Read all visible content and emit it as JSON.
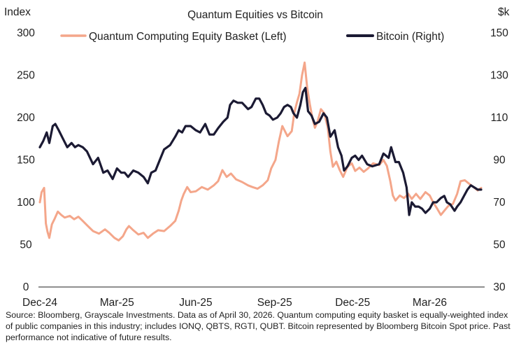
{
  "chart_data": {
    "type": "line",
    "title": "Quantum Equities vs Bitcoin",
    "left_axis_label": "Index",
    "right_axis_label": "$k",
    "y_left_ticks": [
      0,
      50,
      100,
      150,
      200,
      250,
      300
    ],
    "y_left_range": [
      0,
      300
    ],
    "y_right_ticks": [
      30,
      50,
      70,
      90,
      110,
      130,
      150
    ],
    "y_right_range": [
      30,
      150
    ],
    "x_ticks": [
      "Dec-24",
      "Mar-25",
      "Jun-25",
      "Sep-25",
      "Dec-25",
      "Mar-26"
    ],
    "x_tick_dates": [
      "2024-12-01",
      "2025-03-01",
      "2025-06-01",
      "2025-09-01",
      "2025-12-01",
      "2026-03-01"
    ],
    "x_range": [
      "2024-12-01",
      "2026-04-30"
    ],
    "grid": false,
    "legend_position": "top",
    "series": [
      {
        "name": "Quantum Computing Equity Basket (Left)",
        "axis": "left",
        "color": "#f4a68a",
        "points": [
          [
            "2024-12-01",
            100
          ],
          [
            "2024-12-03",
            112
          ],
          [
            "2024-12-06",
            117
          ],
          [
            "2024-12-08",
            75
          ],
          [
            "2024-12-10",
            65
          ],
          [
            "2024-12-12",
            58
          ],
          [
            "2024-12-15",
            74
          ],
          [
            "2024-12-18",
            80
          ],
          [
            "2024-12-22",
            89
          ],
          [
            "2024-12-26",
            85
          ],
          [
            "2024-12-30",
            82
          ],
          [
            "2025-01-05",
            84
          ],
          [
            "2025-01-10",
            80
          ],
          [
            "2025-01-15",
            83
          ],
          [
            "2025-01-20",
            78
          ],
          [
            "2025-01-25",
            73
          ],
          [
            "2025-02-01",
            66
          ],
          [
            "2025-02-08",
            63
          ],
          [
            "2025-02-15",
            68
          ],
          [
            "2025-02-20",
            64
          ],
          [
            "2025-02-26",
            58
          ],
          [
            "2025-03-03",
            55
          ],
          [
            "2025-03-08",
            60
          ],
          [
            "2025-03-12",
            68
          ],
          [
            "2025-03-15",
            72
          ],
          [
            "2025-03-20",
            67
          ],
          [
            "2025-03-26",
            62
          ],
          [
            "2025-04-01",
            64
          ],
          [
            "2025-04-06",
            58
          ],
          [
            "2025-04-12",
            63
          ],
          [
            "2025-04-18",
            67
          ],
          [
            "2025-04-25",
            66
          ],
          [
            "2025-05-02",
            72
          ],
          [
            "2025-05-08",
            78
          ],
          [
            "2025-05-12",
            90
          ],
          [
            "2025-05-15",
            102
          ],
          [
            "2025-05-18",
            110
          ],
          [
            "2025-05-22",
            118
          ],
          [
            "2025-05-26",
            112
          ],
          [
            "2025-06-01",
            113
          ],
          [
            "2025-06-08",
            118
          ],
          [
            "2025-06-15",
            115
          ],
          [
            "2025-06-22",
            120
          ],
          [
            "2025-06-27",
            125
          ],
          [
            "2025-07-02",
            138
          ],
          [
            "2025-07-07",
            130
          ],
          [
            "2025-07-12",
            134
          ],
          [
            "2025-07-18",
            127
          ],
          [
            "2025-07-25",
            124
          ],
          [
            "2025-08-01",
            120
          ],
          [
            "2025-08-06",
            118
          ],
          [
            "2025-08-12",
            116
          ],
          [
            "2025-08-18",
            120
          ],
          [
            "2025-08-24",
            126
          ],
          [
            "2025-08-28",
            140
          ],
          [
            "2025-09-02",
            150
          ],
          [
            "2025-09-06",
            172
          ],
          [
            "2025-09-10",
            190
          ],
          [
            "2025-09-16",
            178
          ],
          [
            "2025-09-21",
            184
          ],
          [
            "2025-09-24",
            206
          ],
          [
            "2025-09-27",
            218
          ],
          [
            "2025-09-30",
            228
          ],
          [
            "2025-10-03",
            250
          ],
          [
            "2025-10-06",
            265
          ],
          [
            "2025-10-09",
            235
          ],
          [
            "2025-10-12",
            216
          ],
          [
            "2025-10-15",
            200
          ],
          [
            "2025-10-18",
            188
          ],
          [
            "2025-10-21",
            195
          ],
          [
            "2025-10-25",
            210
          ],
          [
            "2025-10-29",
            205
          ],
          [
            "2025-11-02",
            188
          ],
          [
            "2025-11-05",
            160
          ],
          [
            "2025-11-08",
            142
          ],
          [
            "2025-11-12",
            148
          ],
          [
            "2025-11-16",
            138
          ],
          [
            "2025-11-20",
            130
          ],
          [
            "2025-11-25",
            142
          ],
          [
            "2025-11-30",
            146
          ],
          [
            "2025-12-04",
            137
          ],
          [
            "2025-12-09",
            141
          ],
          [
            "2025-12-14",
            136
          ],
          [
            "2025-12-19",
            140
          ],
          [
            "2025-12-25",
            146
          ],
          [
            "2026-01-01",
            144
          ],
          [
            "2026-01-06",
            150
          ],
          [
            "2026-01-10",
            143
          ],
          [
            "2026-01-14",
            125
          ],
          [
            "2026-01-17",
            108
          ],
          [
            "2026-01-20",
            102
          ],
          [
            "2026-01-25",
            108
          ],
          [
            "2026-01-30",
            105
          ],
          [
            "2026-02-04",
            110
          ],
          [
            "2026-02-08",
            104
          ],
          [
            "2026-02-13",
            110
          ],
          [
            "2026-02-18",
            104
          ],
          [
            "2026-02-24",
            112
          ],
          [
            "2026-03-01",
            108
          ],
          [
            "2026-03-05",
            100
          ],
          [
            "2026-03-10",
            92
          ],
          [
            "2026-03-14",
            85
          ],
          [
            "2026-03-18",
            90
          ],
          [
            "2026-03-23",
            96
          ],
          [
            "2026-03-28",
            98
          ],
          [
            "2026-04-02",
            110
          ],
          [
            "2026-04-06",
            125
          ],
          [
            "2026-04-11",
            126
          ],
          [
            "2026-04-16",
            122
          ],
          [
            "2026-04-21",
            118
          ],
          [
            "2026-04-26",
            114
          ],
          [
            "2026-04-30",
            117
          ]
        ]
      },
      {
        "name": "Bitcoin (Right)",
        "axis": "right",
        "color": "#1b1a33",
        "points": [
          [
            "2024-12-01",
            96
          ],
          [
            "2024-12-05",
            99
          ],
          [
            "2024-12-09",
            103
          ],
          [
            "2024-12-12",
            98
          ],
          [
            "2024-12-16",
            106
          ],
          [
            "2024-12-19",
            107
          ],
          [
            "2024-12-23",
            104
          ],
          [
            "2024-12-28",
            100
          ],
          [
            "2025-01-02",
            96
          ],
          [
            "2025-01-07",
            98
          ],
          [
            "2025-01-11",
            96
          ],
          [
            "2025-01-15",
            97
          ],
          [
            "2025-01-20",
            96
          ],
          [
            "2025-01-25",
            94
          ],
          [
            "2025-02-01",
            88
          ],
          [
            "2025-02-07",
            91
          ],
          [
            "2025-02-13",
            84
          ],
          [
            "2025-02-18",
            85
          ],
          [
            "2025-02-24",
            81
          ],
          [
            "2025-03-01",
            86
          ],
          [
            "2025-03-06",
            84
          ],
          [
            "2025-03-10",
            84
          ],
          [
            "2025-03-14",
            82
          ],
          [
            "2025-03-20",
            85
          ],
          [
            "2025-03-26",
            84
          ],
          [
            "2025-04-01",
            82
          ],
          [
            "2025-04-06",
            79
          ],
          [
            "2025-04-10",
            84
          ],
          [
            "2025-04-15",
            85
          ],
          [
            "2025-04-20",
            90
          ],
          [
            "2025-04-25",
            95
          ],
          [
            "2025-05-02",
            97
          ],
          [
            "2025-05-08",
            101
          ],
          [
            "2025-05-12",
            104
          ],
          [
            "2025-05-16",
            103
          ],
          [
            "2025-05-20",
            106
          ],
          [
            "2025-05-26",
            106
          ],
          [
            "2025-06-01",
            104
          ],
          [
            "2025-06-06",
            103
          ],
          [
            "2025-06-12",
            107
          ],
          [
            "2025-06-17",
            102
          ],
          [
            "2025-06-22",
            102
          ],
          [
            "2025-06-27",
            105
          ],
          [
            "2025-07-03",
            108
          ],
          [
            "2025-07-08",
            110
          ],
          [
            "2025-07-11",
            116
          ],
          [
            "2025-07-15",
            118
          ],
          [
            "2025-07-20",
            117
          ],
          [
            "2025-07-25",
            117
          ],
          [
            "2025-08-01",
            114
          ],
          [
            "2025-08-05",
            115
          ],
          [
            "2025-08-10",
            119
          ],
          [
            "2025-08-14",
            119
          ],
          [
            "2025-08-18",
            116
          ],
          [
            "2025-08-22",
            112
          ],
          [
            "2025-08-26",
            111
          ],
          [
            "2025-08-30",
            109
          ],
          [
            "2025-09-04",
            110
          ],
          [
            "2025-09-08",
            112
          ],
          [
            "2025-09-12",
            115
          ],
          [
            "2025-09-16",
            116
          ],
          [
            "2025-09-20",
            115
          ],
          [
            "2025-09-23",
            112
          ],
          [
            "2025-09-27",
            110
          ],
          [
            "2025-10-01",
            116
          ],
          [
            "2025-10-04",
            122
          ],
          [
            "2025-10-07",
            124
          ],
          [
            "2025-10-10",
            113
          ],
          [
            "2025-10-14",
            111
          ],
          [
            "2025-10-18",
            107
          ],
          [
            "2025-10-23",
            108
          ],
          [
            "2025-10-28",
            112
          ],
          [
            "2025-11-01",
            110
          ],
          [
            "2025-11-05",
            101
          ],
          [
            "2025-11-10",
            104
          ],
          [
            "2025-11-14",
            96
          ],
          [
            "2025-11-18",
            92
          ],
          [
            "2025-11-21",
            85
          ],
          [
            "2025-11-25",
            87
          ],
          [
            "2025-11-30",
            91
          ],
          [
            "2025-12-04",
            92
          ],
          [
            "2025-12-08",
            90
          ],
          [
            "2025-12-12",
            92
          ],
          [
            "2025-12-18",
            88
          ],
          [
            "2025-12-24",
            87
          ],
          [
            "2026-01-01",
            88
          ],
          [
            "2026-01-06",
            93
          ],
          [
            "2026-01-12",
            91
          ],
          [
            "2026-01-15",
            96
          ],
          [
            "2026-01-20",
            89
          ],
          [
            "2026-01-24",
            89
          ],
          [
            "2026-01-29",
            84
          ],
          [
            "2026-02-02",
            77
          ],
          [
            "2026-02-05",
            64
          ],
          [
            "2026-02-08",
            70
          ],
          [
            "2026-02-12",
            68
          ],
          [
            "2026-02-16",
            68
          ],
          [
            "2026-02-20",
            67
          ],
          [
            "2026-02-24",
            65
          ],
          [
            "2026-03-01",
            67
          ],
          [
            "2026-03-05",
            70
          ],
          [
            "2026-03-09",
            70
          ],
          [
            "2026-03-14",
            72
          ],
          [
            "2026-03-18",
            73
          ],
          [
            "2026-03-21",
            70
          ],
          [
            "2026-03-25",
            69
          ],
          [
            "2026-03-30",
            66
          ],
          [
            "2026-04-02",
            68
          ],
          [
            "2026-04-06",
            70
          ],
          [
            "2026-04-10",
            73
          ],
          [
            "2026-04-14",
            76
          ],
          [
            "2026-04-18",
            78
          ],
          [
            "2026-04-22",
            77
          ],
          [
            "2026-04-26",
            76
          ],
          [
            "2026-04-30",
            76
          ]
        ]
      }
    ]
  },
  "source_text": "Source: Bloomberg, Grayscale Investments. Data as of April 30, 2026. Quantum computing equity basket is equally-weighted index of public companies in this industry; includes IONQ, QBTS, RGTI, QUBT. Bitcoin represented by Bloomberg Bitcoin Spot price. Past performance not indicative of future results."
}
